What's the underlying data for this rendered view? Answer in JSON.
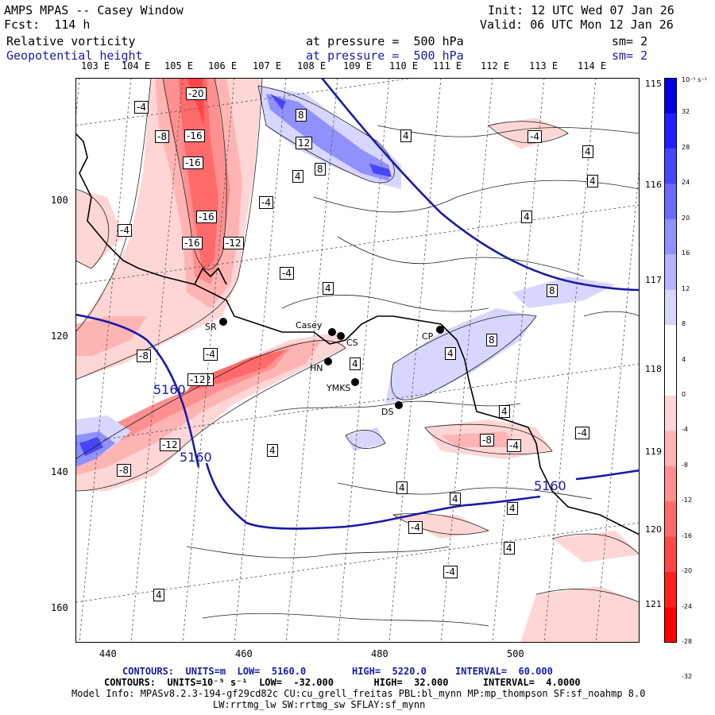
{
  "header": {
    "title": "AMPS MPAS -- Casey Window",
    "forecast": "Fcst:  114 h",
    "init": "Init: 12 UTC Wed 07 Jan 26",
    "valid": "Valid: 06 UTC Mon 12 Jan 26",
    "field1_name": "Relative vorticity",
    "field1_level": "at pressure =  500 hPa",
    "field1_sm": "sm= 2",
    "field2_name": "Geopotential height",
    "field2_level": "at pressure =  500 hPa",
    "field2_sm": "sm= 2"
  },
  "top_longitudes": [
    "103 E",
    "104 E",
    "105 E",
    "106 E",
    "107 E",
    "108 E",
    "109 E",
    "110 E",
    "111 E",
    "112 E",
    "113 E",
    "114 E"
  ],
  "right_longitudes": [
    "115 E",
    "116 E",
    "117 E",
    "118 E",
    "119 E",
    "120 E",
    "121 E"
  ],
  "y_ticks": [
    "100",
    "120",
    "140",
    "160"
  ],
  "x_ticks": [
    "440",
    "460",
    "480",
    "500"
  ],
  "colorbar": {
    "unit_label": "10⁻⁵ s⁻¹",
    "labels": [
      "32",
      "28",
      "24",
      "20",
      "16",
      "12",
      "8",
      "4",
      "0",
      "-4",
      "-8",
      "-12",
      "-16",
      "-20",
      "-24",
      "-28",
      "-32"
    ],
    "colors": [
      "#0000e0",
      "#2020ff",
      "#4646ff",
      "#6a6aff",
      "#9090ff",
      "#b4b4ff",
      "#d6d6ff",
      "#ffffff",
      "#ffffff",
      "#ffd6d6",
      "#ffb4b4",
      "#ff9090",
      "#ff6a6a",
      "#ff4646",
      "#ff2020",
      "#ff0000"
    ]
  },
  "stations": [
    "SR",
    "Casey",
    "CS",
    "HN",
    "YMKS",
    "DS",
    "CP"
  ],
  "contour_labels": [
    "-20",
    "-16",
    "-16",
    "-16",
    "-12",
    "-16",
    "-12",
    "-8",
    "-8",
    "-12",
    "-4",
    "-4",
    "-4",
    "-4",
    "-8",
    "-8",
    "-12",
    "-4",
    "-4",
    "-4",
    "-4",
    "-4",
    "-4",
    "4",
    "4",
    "4",
    "4",
    "4",
    "4",
    "4",
    "4",
    "4",
    "4",
    "4",
    "4",
    "4",
    "4",
    "4",
    "8",
    "8",
    "8",
    "8",
    "12",
    "5160",
    "5160",
    "5160"
  ],
  "footer": {
    "contours1": "CONTOURS:  UNITS=m  LOW=  5160.0        HIGH=  5220.0     INTERVAL=  60.000",
    "contours2": "CONTOURS:  UNITS=10⁻⁵ s⁻¹  LOW=  -32.000       HIGH=  32.000      INTERVAL=  4.0000",
    "model_info": "Model Info: MPASv8.2.3-194-gf29cd82c CU:cu_grell_freitas PBL:bl_mynn MP:mp_thompson SF:sf_noahmp 8.0",
    "model_info2": "LW:rrtmg_lw SW:rrtmg_sw SFLAY:sf_mynn"
  }
}
